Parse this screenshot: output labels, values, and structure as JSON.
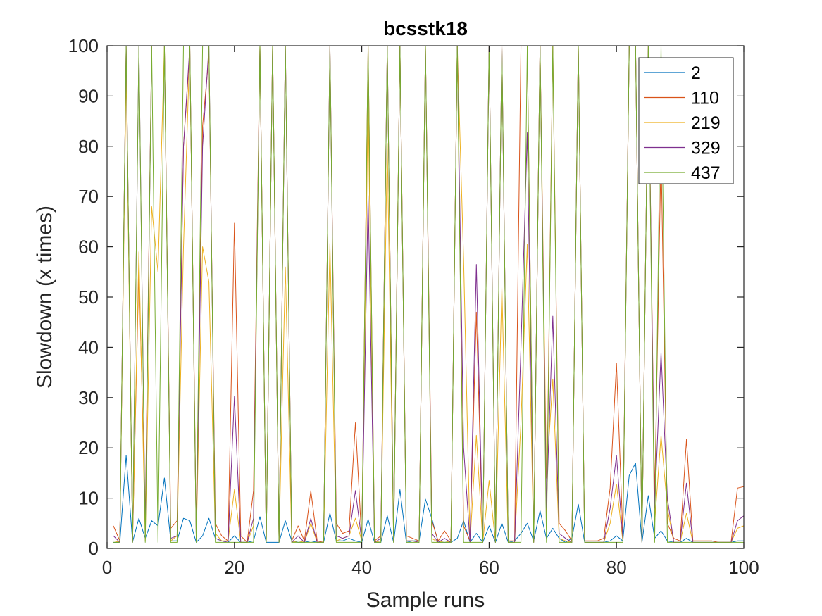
{
  "chart_data": {
    "type": "line",
    "title": "bcsstk18",
    "xlabel": "Sample runs",
    "ylabel": "Slowdown (x times)",
    "xlim": [
      0,
      100
    ],
    "ylim": [
      0,
      100
    ],
    "xticks": [
      "0",
      "20",
      "40",
      "60",
      "80",
      "100"
    ],
    "yticks": [
      "0",
      "10",
      "20",
      "30",
      "40",
      "50",
      "60",
      "70",
      "80",
      "90",
      "100"
    ],
    "grid": false,
    "legend_position": "top-right",
    "x": [
      1,
      2,
      3,
      4,
      5,
      6,
      7,
      8,
      9,
      10,
      11,
      12,
      13,
      14,
      15,
      16,
      17,
      18,
      19,
      20,
      21,
      22,
      23,
      24,
      25,
      26,
      27,
      28,
      29,
      30,
      31,
      32,
      33,
      34,
      35,
      36,
      37,
      38,
      39,
      40,
      41,
      42,
      43,
      44,
      45,
      46,
      47,
      48,
      49,
      50,
      51,
      52,
      53,
      54,
      55,
      56,
      57,
      58,
      59,
      60,
      61,
      62,
      63,
      64,
      65,
      66,
      67,
      68,
      69,
      70,
      71,
      72,
      73,
      74,
      75,
      76,
      77,
      78,
      79,
      80,
      81,
      82,
      83,
      84,
      85,
      86,
      87,
      88,
      89,
      90,
      91,
      92,
      93,
      94,
      95,
      96,
      97,
      98,
      99,
      100
    ],
    "series": [
      {
        "name": "2",
        "color": "#0072BD",
        "values": [
          1.2,
          1.1,
          18.5,
          1.3,
          6.0,
          2.0,
          5.5,
          4.5,
          14.0,
          1.5,
          1.5,
          6.0,
          5.5,
          1.2,
          2.5,
          6.0,
          2.0,
          1.5,
          1.2,
          2.5,
          1.2,
          1.2,
          1.5,
          6.3,
          1.2,
          1.2,
          1.2,
          5.5,
          1.5,
          1.2,
          1.2,
          1.5,
          1.2,
          1.2,
          7.0,
          1.5,
          1.5,
          2.0,
          1.5,
          1.2,
          5.8,
          1.2,
          1.2,
          6.5,
          1.2,
          11.7,
          1.2,
          1.5,
          1.5,
          9.8,
          6.0,
          1.2,
          1.2,
          1.2,
          2.0,
          5.5,
          1.2,
          3.0,
          1.2,
          4.5,
          1.2,
          5.0,
          1.2,
          1.5,
          3.0,
          5.0,
          1.5,
          7.5,
          2.0,
          4.0,
          2.0,
          1.2,
          2.0,
          8.8,
          1.2,
          1.2,
          1.2,
          1.2,
          1.5,
          2.5,
          1.5,
          14.5,
          17.0,
          1.2,
          10.5,
          2.0,
          3.5,
          1.5,
          1.2,
          1.2,
          2.0,
          1.2,
          1.2,
          1.2,
          1.2,
          1.2,
          1.2,
          1.2,
          1.5,
          1.5
        ]
      },
      {
        "name": "110",
        "color": "#D95319",
        "values": [
          4.5,
          1.5,
          100,
          1.5,
          56,
          6,
          100,
          100,
          100,
          4.0,
          5.5,
          80,
          99,
          4.0,
          84,
          98,
          5.0,
          2.5,
          1.5,
          64.7,
          2.5,
          1.2,
          11.5,
          100,
          1.5,
          100,
          1.5,
          100,
          1.5,
          4.5,
          1.5,
          11.5,
          1.5,
          1.2,
          100,
          5.0,
          3.0,
          3.5,
          25.0,
          1.5,
          100,
          1.5,
          2.5,
          100,
          2.5,
          100,
          2.5,
          2.0,
          1.5,
          100,
          5.5,
          1.5,
          3.5,
          1.5,
          100,
          4.5,
          1.5,
          47.0,
          1.5,
          100,
          1.5,
          100,
          1.5,
          1.5,
          100,
          100,
          1.5,
          100,
          5.0,
          100,
          5.0,
          3.5,
          1.5,
          100,
          1.5,
          1.5,
          1.5,
          2.0,
          12.0,
          36.8,
          3.0,
          100,
          100,
          1.5,
          100,
          10.0,
          79.0,
          5.0,
          2.0,
          1.5,
          21.7,
          1.5,
          1.5,
          1.5,
          1.5,
          1.2,
          1.2,
          1.2,
          12.0,
          12.3
        ]
      },
      {
        "name": "219",
        "color": "#EDB120",
        "values": [
          1.5,
          1.2,
          95,
          1.5,
          59,
          1.5,
          68,
          55,
          100,
          1.5,
          2.5,
          60,
          100,
          1.5,
          60,
          53,
          3.0,
          1.5,
          1.5,
          11.7,
          1.2,
          1.2,
          4.5,
          100,
          1.2,
          100,
          1.2,
          56,
          1.2,
          1.5,
          1.2,
          5.0,
          1.2,
          1.2,
          60.7,
          1.5,
          2.0,
          2.5,
          6.0,
          1.5,
          89.5,
          1.2,
          1.5,
          80.6,
          1.2,
          100,
          1.5,
          1.5,
          1.2,
          100,
          2.0,
          1.2,
          1.5,
          1.2,
          100,
          57.5,
          1.2,
          22.5,
          1.2,
          13.5,
          1.2,
          52.0,
          1.2,
          1.2,
          25.0,
          60.5,
          1.2,
          100,
          14.0,
          33.7,
          2.0,
          1.5,
          1.2,
          100,
          1.2,
          1.2,
          1.2,
          1.2,
          5.0,
          12.8,
          1.5,
          100,
          100,
          1.2,
          100,
          5.0,
          22.5,
          8.0,
          1.2,
          1.2,
          7.0,
          1.2,
          1.2,
          1.2,
          1.2,
          1.2,
          1.2,
          1.2,
          4.0,
          4.5
        ]
      },
      {
        "name": "329",
        "color": "#7E2F8E",
        "values": [
          2.5,
          1.2,
          100,
          1.2,
          100,
          3,
          100,
          100,
          100,
          2.0,
          2.5,
          80,
          100,
          1.5,
          80,
          100,
          2.0,
          1.5,
          1.2,
          30.2,
          1.2,
          1.2,
          6.0,
          100,
          1.2,
          100,
          1.2,
          100,
          1.2,
          2.5,
          1.2,
          6.0,
          1.2,
          1.2,
          100,
          2.5,
          2.0,
          2.5,
          11.5,
          1.5,
          70.2,
          1.2,
          2.0,
          100,
          1.5,
          100,
          1.5,
          1.5,
          1.2,
          100,
          3.0,
          1.2,
          2.0,
          1.2,
          100,
          20.0,
          1.2,
          56.5,
          1.2,
          100,
          1.2,
          100,
          1.2,
          1.2,
          40.0,
          82.7,
          1.2,
          100,
          8.0,
          46.2,
          3.0,
          2.0,
          1.2,
          100,
          1.2,
          1.2,
          1.2,
          1.2,
          8.0,
          18.5,
          2.0,
          100,
          100,
          1.2,
          100,
          8.0,
          39.0,
          10.0,
          1.2,
          1.2,
          13.0,
          1.2,
          1.2,
          1.2,
          1.2,
          1.2,
          1.2,
          1.2,
          5.5,
          6.5
        ]
      },
      {
        "name": "437",
        "color": "#77AC30",
        "values": [
          1.2,
          1.2,
          100,
          1.2,
          100,
          1.2,
          100,
          1.2,
          100,
          1.2,
          1.2,
          100,
          100,
          1.2,
          100,
          100,
          1.2,
          1.2,
          1.2,
          1.2,
          1.2,
          1.2,
          1.2,
          100,
          1.2,
          100,
          1.2,
          100,
          1.2,
          1.2,
          1.2,
          1.2,
          1.2,
          1.2,
          100,
          1.2,
          1.2,
          1.2,
          1.2,
          1.2,
          100,
          1.2,
          1.2,
          100,
          1.2,
          100,
          1.2,
          1.2,
          1.2,
          100,
          1.2,
          1.2,
          1.2,
          1.2,
          100,
          1.2,
          1.2,
          1.2,
          1.2,
          100,
          1.2,
          100,
          1.2,
          1.2,
          1.2,
          100,
          1.2,
          100,
          1.2,
          100,
          1.2,
          1.2,
          1.2,
          100,
          1.2,
          1.2,
          1.2,
          1.2,
          1.2,
          1.2,
          1.2,
          100,
          100,
          1.2,
          100,
          1.2,
          100,
          1.2,
          1.2,
          1.2,
          1.2,
          1.2,
          1.2,
          1.2,
          1.2,
          1.2,
          1.2,
          1.2,
          1.2,
          1.2
        ]
      }
    ]
  }
}
